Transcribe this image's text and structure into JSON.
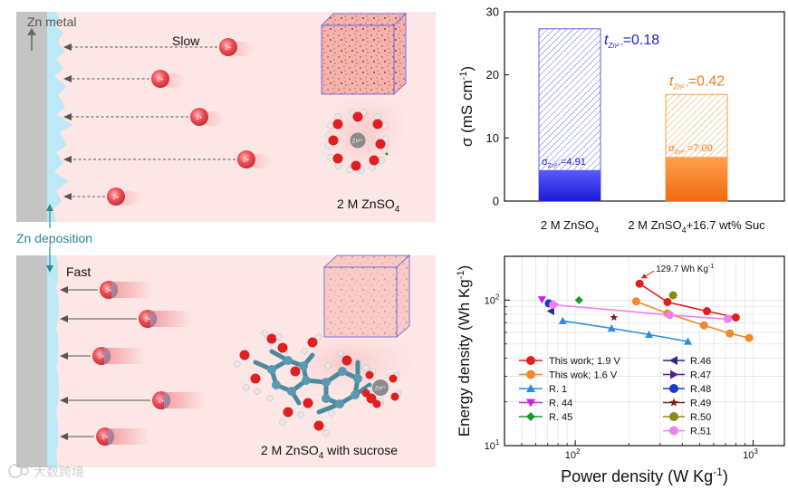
{
  "left_panel": {
    "zn_metal_label": "Zn metal",
    "zn_deposition_label": "Zn deposition",
    "top_box": {
      "speed_label": "Slow",
      "electrolyte_label": "2 M ZnSO",
      "electrolyte_sub": "4"
    },
    "bottom_box": {
      "speed_label": "Fast",
      "electrolyte_label_a": "2 M ZnSO",
      "electrolyte_sub": "4",
      "electrolyte_label_b": " with sucrose"
    },
    "ion_label": "2+",
    "zn_label": "Zn²⁺"
  },
  "watermark": "大数跨境",
  "colors": {
    "zn_ion_red": "#e8474d",
    "bar_blue": "#2b2bdd",
    "bar_orange": "#f07a1e",
    "deposition_teal": "#2a8a95"
  },
  "chart_data": [
    {
      "type": "bar",
      "categories": [
        "2 M ZnSO4",
        "2 M ZnSO4+16.7 wt% Suc"
      ],
      "category_labels": [
        {
          "a": "2 M ZnSO",
          "sub": "4",
          "b": ""
        },
        {
          "a": "2 M ZnSO",
          "sub": "4",
          "b": "+16.7 wt% Suc"
        }
      ],
      "series": [
        {
          "name": "σ",
          "values": [
            27.3,
            16.9
          ],
          "colors": [
            "#2b2bdd",
            "#f07a1e"
          ]
        },
        {
          "name": "σZn2+",
          "values": [
            4.91,
            7.0
          ],
          "colors": [
            "#2b2bdd",
            "#f07a1e"
          ]
        }
      ],
      "annotations": [
        {
          "t_label": "t",
          "t_sub": "Zn²⁺",
          "t_value": "=0.18",
          "s_label": "σ",
          "s_sub": "Zn²⁺",
          "s_value": "=4.91"
        },
        {
          "t_label": "t",
          "t_sub": "Zn²⁺",
          "t_value": "=0.42",
          "s_label": "σ",
          "s_sub": "Zn²⁺",
          "s_value": "=7.00"
        }
      ],
      "ylabel": "σ (mS cm",
      "ylabel_sup": "-1",
      "ylabel_end": ")",
      "ylim": [
        0,
        30
      ],
      "yticks": [
        0,
        10,
        20,
        30
      ],
      "grid": false
    },
    {
      "type": "scatter",
      "xscale": "log",
      "yscale": "log",
      "xlabel": "Power density (W Kg",
      "xlabel_sup": "-1",
      "xlabel_end": ")",
      "ylabel": "Energy density (Wh Kg",
      "ylabel_sup": "-1",
      "ylabel_end": ")",
      "xlim": [
        40,
        1500
      ],
      "ylim": [
        10,
        200
      ],
      "xticks": [
        {
          "v": 100,
          "base": "10",
          "exp": "2"
        },
        {
          "v": 1000,
          "base": "10",
          "exp": "3"
        }
      ],
      "yticks": [
        {
          "v": 10,
          "base": "10",
          "exp": "1"
        },
        {
          "v": 100,
          "base": "10",
          "exp": "2"
        }
      ],
      "grid": true,
      "legend_position": "lower-left",
      "callout": {
        "text": "129.7 Wh Kg",
        "sup": "-1"
      },
      "series": [
        {
          "name": "This work; 1.9 V",
          "marker": "circle",
          "color": "#e02020",
          "line": true,
          "x": [
            230,
            330,
            550,
            800
          ],
          "y": [
            129.7,
            97,
            84,
            76
          ]
        },
        {
          "name": "This wok; 1.6 V",
          "marker": "circle",
          "color": "#f08a2a",
          "line": true,
          "x": [
            220,
            330,
            530,
            740,
            950
          ],
          "y": [
            98,
            81,
            67,
            59,
            55
          ]
        },
        {
          "name": "R. 1",
          "marker": "triangle-up",
          "color": "#2a8ee0",
          "line": true,
          "x": [
            85,
            160,
            260,
            430
          ],
          "y": [
            72,
            64,
            58,
            52
          ]
        },
        {
          "name": "R. 44",
          "marker": "triangle-down",
          "color": "#d020e0",
          "line": false,
          "x": [
            65
          ],
          "y": [
            101
          ]
        },
        {
          "name": "R. 45",
          "marker": "diamond",
          "color": "#1a9a2a",
          "line": false,
          "x": [
            105
          ],
          "y": [
            100
          ]
        },
        {
          "name": "R.46",
          "marker": "triangle-left",
          "color": "#2a2a8a",
          "line": false,
          "x": [
            73
          ],
          "y": [
            84
          ]
        },
        {
          "name": "R.47",
          "marker": "triangle-right",
          "color": "#5a1a9a",
          "line": false,
          "x": [
            76
          ],
          "y": [
            94
          ]
        },
        {
          "name": "R.48",
          "marker": "circle",
          "color": "#1a3ad0",
          "line": false,
          "x": [
            71
          ],
          "y": [
            95
          ]
        },
        {
          "name": "R.49",
          "marker": "star",
          "color": "#8a1a1a",
          "line": false,
          "x": [
            165
          ],
          "y": [
            76
          ]
        },
        {
          "name": "R.50",
          "marker": "circle",
          "color": "#8a8a1a",
          "line": false,
          "x": [
            355
          ],
          "y": [
            108
          ]
        },
        {
          "name": "R.51",
          "marker": "circle",
          "color": "#f080f0",
          "line": true,
          "x": [
            75,
            340,
            720
          ],
          "y": [
            93,
            79,
            74
          ]
        }
      ]
    }
  ]
}
